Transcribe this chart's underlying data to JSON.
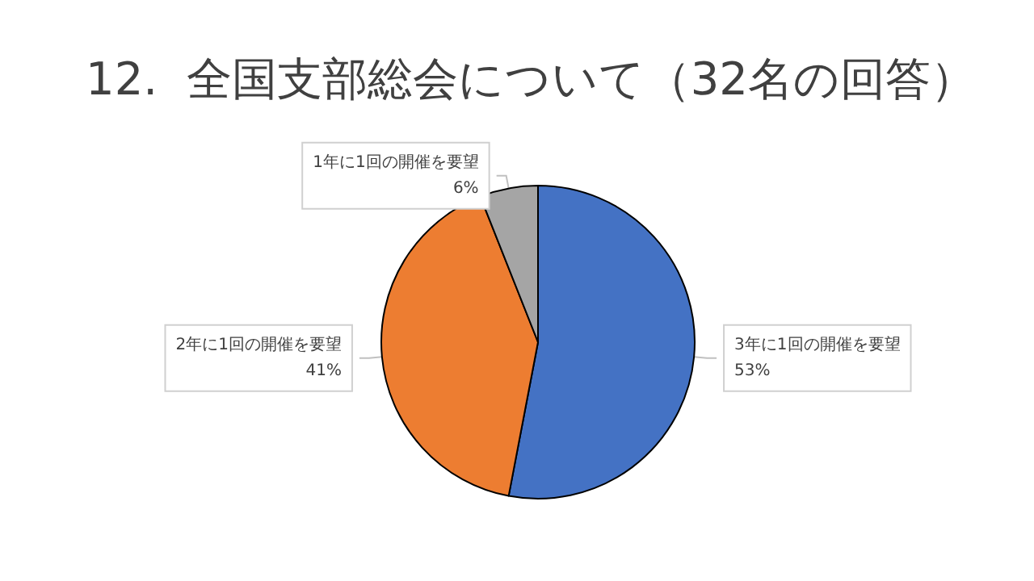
{
  "chart_data": {
    "type": "pie",
    "title": "12.  全国支部総会について（32名の回答）",
    "categories": [
      "3年に1回の開催を要望",
      "2年に1回の開催を要望",
      "1年に1回の開催を要望"
    ],
    "values": [
      53,
      41,
      6
    ],
    "value_labels": [
      "53%",
      "41%",
      "6%"
    ],
    "colors": [
      "#4472c4",
      "#ed7d31",
      "#a5a5a5"
    ],
    "legend": false
  }
}
